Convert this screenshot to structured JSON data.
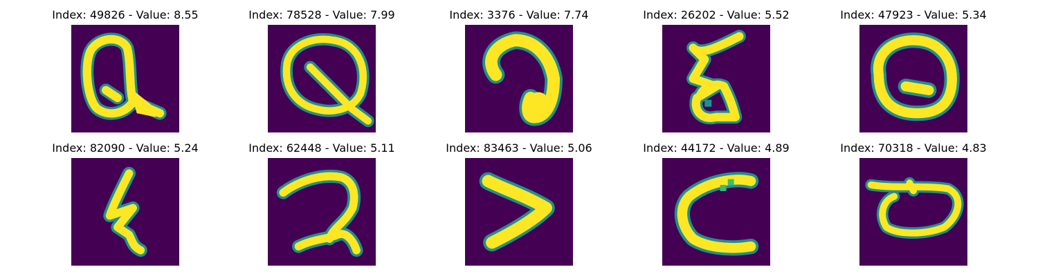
{
  "colors": {
    "background": "#440154",
    "mid": "#21908d",
    "glow": "#3bbb75",
    "foreground": "#fde725"
  },
  "panels": [
    {
      "title": "Index: 49826 - Value: 8.55",
      "icon": "handwritten-glyph-q"
    },
    {
      "title": "Index: 78528 - Value: 7.99",
      "icon": "handwritten-glyph-theta-leaf"
    },
    {
      "title": "Index: 3376 - Value: 7.74",
      "icon": "handwritten-glyph-reversed-c"
    },
    {
      "title": "Index: 26202 - Value: 5.52",
      "icon": "handwritten-glyph-z-crossed"
    },
    {
      "title": "Index: 47923 - Value: 5.34",
      "icon": "handwritten-glyph-q-round"
    },
    {
      "title": "Index: 82090 - Value: 5.24",
      "icon": "handwritten-glyph-zigzag"
    },
    {
      "title": "Index: 62448 - Value: 5.11",
      "icon": "handwritten-glyph-two"
    },
    {
      "title": "Index: 83463 - Value: 5.06",
      "icon": "handwritten-glyph-greater-than"
    },
    {
      "title": "Index: 44172 - Value: 4.89",
      "icon": "handwritten-glyph-c-open"
    },
    {
      "title": "Index: 70318 - Value: 4.83",
      "icon": "handwritten-glyph-loop-o"
    }
  ]
}
